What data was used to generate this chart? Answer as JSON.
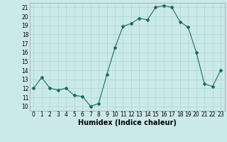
{
  "x": [
    0,
    1,
    2,
    3,
    4,
    5,
    6,
    7,
    8,
    9,
    10,
    11,
    12,
    13,
    14,
    15,
    16,
    17,
    18,
    19,
    20,
    21,
    22,
    23
  ],
  "y": [
    12.0,
    13.2,
    12.0,
    11.8,
    12.0,
    11.2,
    11.1,
    10.0,
    10.3,
    13.5,
    16.5,
    18.9,
    19.2,
    19.8,
    19.6,
    21.0,
    21.2,
    21.0,
    19.4,
    18.8,
    16.0,
    12.5,
    12.2,
    14.0
  ],
  "xlabel": "Humidex (Indice chaleur)",
  "xlim": [
    -0.5,
    23.5
  ],
  "ylim": [
    9.5,
    21.5
  ],
  "yticks": [
    10,
    11,
    12,
    13,
    14,
    15,
    16,
    17,
    18,
    19,
    20,
    21
  ],
  "xticks": [
    0,
    1,
    2,
    3,
    4,
    5,
    6,
    7,
    8,
    9,
    10,
    11,
    12,
    13,
    14,
    15,
    16,
    17,
    18,
    19,
    20,
    21,
    22,
    23
  ],
  "line_color": "#1a6b5a",
  "marker": "D",
  "marker_size": 2,
  "bg_color": "#cce9e9",
  "grid_color": "#aad4d4",
  "label_fontsize": 7,
  "tick_fontsize": 5.5
}
